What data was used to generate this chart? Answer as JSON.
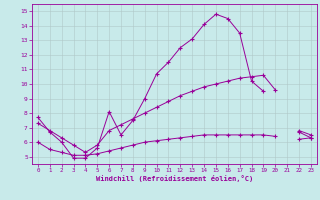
{
  "xlabel": "Windchill (Refroidissement éolien,°C)",
  "ylabel": "",
  "bg_color": "#c8eaea",
  "grid_color": "#b0c8c8",
  "line_color": "#990099",
  "xlim": [
    -0.5,
    23.5
  ],
  "ylim": [
    4.5,
    15.5
  ],
  "xticks": [
    0,
    1,
    2,
    3,
    4,
    5,
    6,
    7,
    8,
    9,
    10,
    11,
    12,
    13,
    14,
    15,
    16,
    17,
    18,
    19,
    20,
    21,
    22,
    23
  ],
  "yticks": [
    5,
    6,
    7,
    8,
    9,
    10,
    11,
    12,
    13,
    14,
    15
  ],
  "series1_y": [
    7.7,
    6.7,
    6.0,
    4.9,
    4.9,
    5.6,
    8.1,
    6.5,
    7.5,
    9.0,
    10.7,
    11.5,
    12.5,
    13.1,
    14.1,
    14.8,
    14.5,
    13.5,
    10.2,
    9.5,
    null,
    null,
    6.8,
    6.5
  ],
  "series2_y": [
    7.3,
    6.8,
    6.3,
    5.8,
    5.3,
    5.8,
    6.8,
    7.2,
    7.6,
    8.0,
    8.4,
    8.8,
    9.2,
    9.5,
    9.8,
    10.0,
    10.2,
    10.4,
    10.5,
    10.6,
    9.6,
    null,
    6.7,
    6.3
  ],
  "series3_y": [
    6.0,
    5.5,
    5.3,
    5.1,
    5.1,
    5.2,
    5.4,
    5.6,
    5.8,
    6.0,
    6.1,
    6.2,
    6.3,
    6.4,
    6.5,
    6.5,
    6.5,
    6.5,
    6.5,
    6.5,
    6.4,
    null,
    6.2,
    6.3
  ]
}
